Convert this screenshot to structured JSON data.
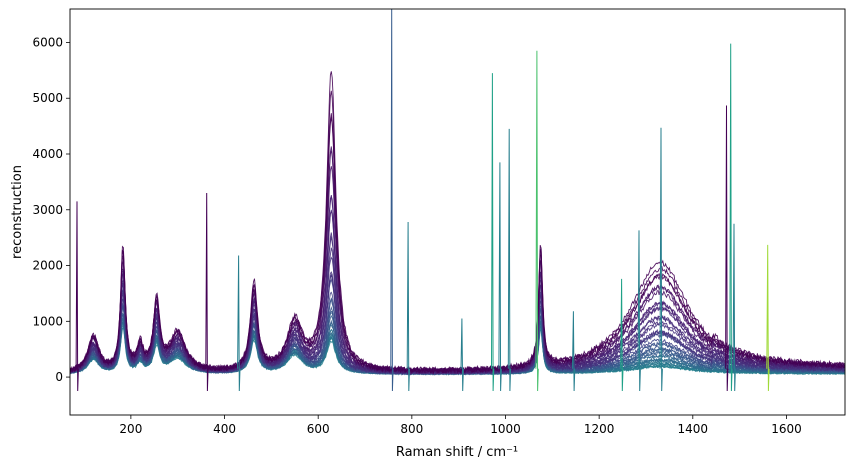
{
  "chart_data": {
    "type": "line",
    "xlabel": "Raman shift / cm⁻¹",
    "ylabel": "reconstruction",
    "xlim": [
      70,
      1725
    ],
    "ylim": [
      -680,
      6600
    ],
    "x_ticks": [
      200,
      400,
      600,
      800,
      1000,
      1200,
      1400,
      1600
    ],
    "y_ticks": [
      0,
      1000,
      2000,
      3000,
      4000,
      5000,
      6000
    ],
    "grid": false,
    "legend": "none",
    "colormap": "viridis",
    "colors": {
      "dark_purple": "#440154",
      "purple": "#46327e",
      "blue": "#365c8d",
      "teal": "#277f8e",
      "green": "#1fa187",
      "light_green": "#4ac16d",
      "yellow_green": "#a0da39"
    },
    "series_count": 40,
    "baseline_peaks": [
      {
        "x": 120,
        "y": 560
      },
      {
        "x": 183,
        "y": 1920
      },
      {
        "x": 220,
        "y": 380
      },
      {
        "x": 255,
        "y": 1100
      },
      {
        "x": 300,
        "y": 620
      },
      {
        "x": 463,
        "y": 1350
      },
      {
        "x": 550,
        "y": 750
      },
      {
        "x": 628,
        "y": 2200
      },
      {
        "x": 1075,
        "y": 1900
      },
      {
        "x": 1330,
        "y": 900
      }
    ],
    "spikes": [
      {
        "x": 85,
        "y": 3150
      },
      {
        "x": 362,
        "y": 3300
      },
      {
        "x": 430,
        "y": 2180
      },
      {
        "x": 757,
        "y": 6600
      },
      {
        "x": 792,
        "y": 2780
      },
      {
        "x": 907,
        "y": 1050
      },
      {
        "x": 972,
        "y": 5450
      },
      {
        "x": 988,
        "y": 3850
      },
      {
        "x": 1008,
        "y": 4450
      },
      {
        "x": 1067,
        "y": 5850
      },
      {
        "x": 1145,
        "y": 1180
      },
      {
        "x": 1248,
        "y": 1760
      },
      {
        "x": 1285,
        "y": 2630
      },
      {
        "x": 1332,
        "y": 4470
      },
      {
        "x": 1472,
        "y": 4870
      },
      {
        "x": 1481,
        "y": 5980
      },
      {
        "x": 1488,
        "y": 2750
      },
      {
        "x": 1560,
        "y": 2370
      }
    ]
  }
}
